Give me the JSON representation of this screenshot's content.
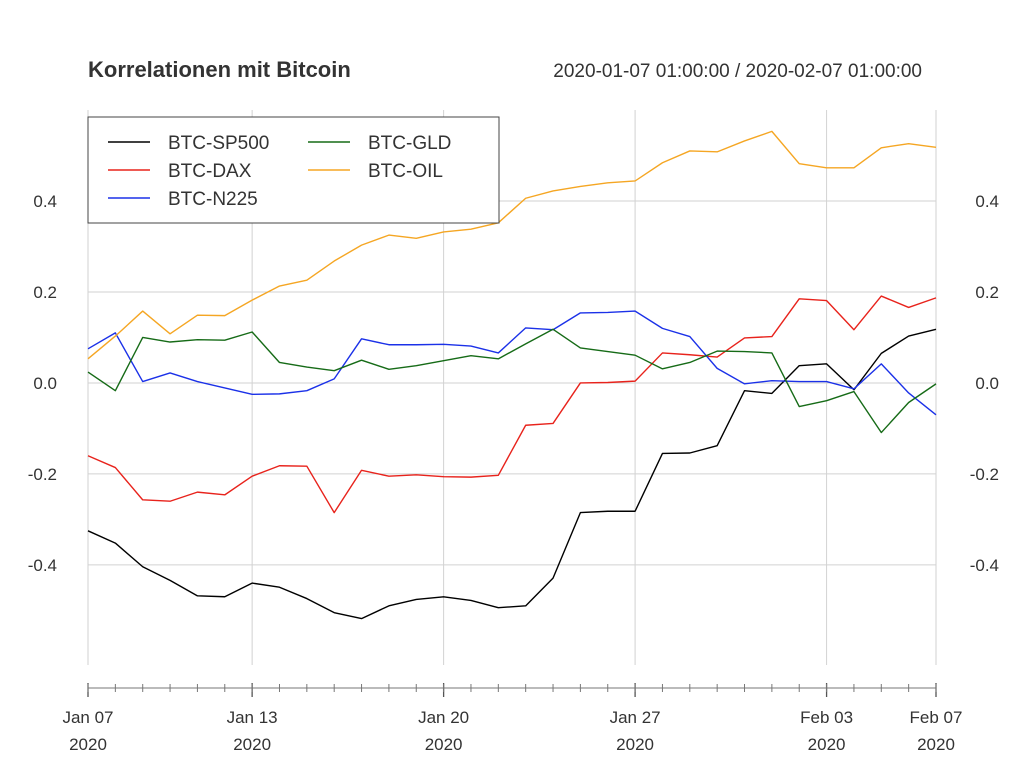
{
  "chart_data": {
    "type": "line",
    "title": "Korrelationen mit Bitcoin",
    "subtitle": "2020-01-07 01:00:00 / 2020-02-07 01:00:00",
    "xlabel": "",
    "ylabel": "",
    "ylim": [
      -0.62,
      0.6
    ],
    "grid": true,
    "legend_position": "top-left",
    "x": [
      "2020-01-07",
      "2020-01-08",
      "2020-01-09",
      "2020-01-10",
      "2020-01-11",
      "2020-01-12",
      "2020-01-13",
      "2020-01-14",
      "2020-01-15",
      "2020-01-16",
      "2020-01-17",
      "2020-01-18",
      "2020-01-19",
      "2020-01-20",
      "2020-01-21",
      "2020-01-22",
      "2020-01-23",
      "2020-01-24",
      "2020-01-25",
      "2020-01-26",
      "2020-01-27",
      "2020-01-28",
      "2020-01-29",
      "2020-01-30",
      "2020-01-31",
      "2020-02-01",
      "2020-02-02",
      "2020-02-03",
      "2020-02-04",
      "2020-02-05",
      "2020-02-06",
      "2020-02-07"
    ],
    "x_ticks": [
      {
        "date": "2020-01-07",
        "line1": "Jan 07",
        "line2": "2020"
      },
      {
        "date": "2020-01-13",
        "line1": "Jan 13",
        "line2": "2020"
      },
      {
        "date": "2020-01-20",
        "line1": "Jan 20",
        "line2": "2020"
      },
      {
        "date": "2020-01-27",
        "line1": "Jan 27",
        "line2": "2020"
      },
      {
        "date": "2020-02-03",
        "line1": "Feb 03",
        "line2": "2020"
      },
      {
        "date": "2020-02-07",
        "line1": "Feb 07",
        "line2": "2020"
      }
    ],
    "y_ticks": [
      -0.4,
      -0.2,
      0.0,
      0.2,
      0.4
    ],
    "y_tick_labels": [
      "-0.4",
      "-0.2",
      "0.0",
      "0.2",
      "0.4"
    ],
    "series": [
      {
        "name": "BTC-SP500",
        "color": "#000000",
        "values": [
          -0.325,
          -0.352,
          -0.404,
          -0.434,
          -0.468,
          -0.47,
          -0.44,
          -0.449,
          -0.474,
          -0.505,
          -0.518,
          -0.49,
          -0.476,
          -0.47,
          -0.478,
          -0.494,
          -0.49,
          -0.429,
          -0.285,
          -0.282,
          -0.282,
          -0.155,
          -0.154,
          -0.138,
          -0.017,
          -0.023,
          0.038,
          0.042,
          -0.015,
          0.065,
          0.103,
          0.118
        ]
      },
      {
        "name": "BTC-DAX",
        "color": "#e8231c",
        "values": [
          -0.16,
          -0.186,
          -0.257,
          -0.26,
          -0.24,
          -0.246,
          -0.205,
          -0.182,
          -0.183,
          -0.285,
          -0.192,
          -0.205,
          -0.202,
          -0.206,
          -0.207,
          -0.203,
          -0.093,
          -0.089,
          0.0,
          0.001,
          0.004,
          0.066,
          0.062,
          0.057,
          0.099,
          0.102,
          0.185,
          0.181,
          0.117,
          0.191,
          0.166,
          0.187
        ]
      },
      {
        "name": "BTC-N225",
        "color": "#1b31e8",
        "values": [
          0.075,
          0.11,
          0.003,
          0.022,
          0.003,
          -0.011,
          -0.025,
          -0.024,
          -0.017,
          0.009,
          0.097,
          0.084,
          0.084,
          0.085,
          0.081,
          0.066,
          0.121,
          0.117,
          0.154,
          0.155,
          0.158,
          0.12,
          0.102,
          0.032,
          -0.002,
          0.005,
          0.003,
          0.003,
          -0.013,
          0.042,
          -0.022,
          -0.07
        ]
      },
      {
        "name": "BTC-GLD",
        "color": "#166b17",
        "values": [
          0.024,
          -0.017,
          0.1,
          0.09,
          0.095,
          0.094,
          0.112,
          0.045,
          0.035,
          0.027,
          0.05,
          0.03,
          0.038,
          0.049,
          0.06,
          0.053,
          0.086,
          0.118,
          0.077,
          0.069,
          0.061,
          0.031,
          0.045,
          0.07,
          0.069,
          0.066,
          -0.052,
          -0.039,
          -0.019,
          -0.109,
          -0.043,
          -0.002
        ]
      },
      {
        "name": "BTC-OIL",
        "color": "#f5a623",
        "values": [
          0.053,
          0.103,
          0.158,
          0.108,
          0.149,
          0.148,
          0.182,
          0.213,
          0.226,
          0.268,
          0.303,
          0.325,
          0.318,
          0.332,
          0.338,
          0.352,
          0.406,
          0.422,
          0.432,
          0.44,
          0.444,
          0.484,
          0.51,
          0.508,
          0.532,
          0.553,
          0.482,
          0.473,
          0.473,
          0.517,
          0.526,
          0.518
        ]
      }
    ]
  }
}
